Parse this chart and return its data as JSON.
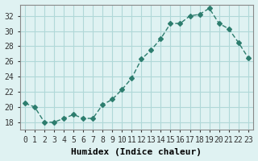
{
  "x": [
    0,
    1,
    2,
    3,
    4,
    5,
    6,
    7,
    8,
    9,
    10,
    11,
    12,
    13,
    14,
    15,
    16,
    17,
    18,
    19,
    20,
    21,
    22,
    23
  ],
  "y": [
    20.5,
    20.0,
    18.0,
    18.0,
    18.5,
    19.0,
    18.5,
    18.5,
    20.3,
    21.0,
    22.3,
    23.8,
    26.3,
    27.5,
    29.0,
    31.0,
    31.0,
    32.0,
    32.2,
    33.0,
    31.0,
    30.3,
    28.5,
    26.5
  ],
  "line_color": "#2d7d6e",
  "marker": "D",
  "marker_size": 3,
  "bg_color": "#dff2f2",
  "grid_color": "#b0d8d8",
  "xlabel": "Humidex (Indice chaleur)",
  "ylabel": "",
  "title": "",
  "xlim": [
    -0.5,
    23.5
  ],
  "ylim": [
    17,
    33.5
  ],
  "yticks": [
    18,
    20,
    22,
    24,
    26,
    28,
    30,
    32
  ],
  "xtick_labels": [
    "0",
    "1",
    "2",
    "3",
    "4",
    "5",
    "6",
    "7",
    "8",
    "9",
    "10",
    "11",
    "12",
    "13",
    "14",
    "15",
    "16",
    "17",
    "18",
    "19",
    "20",
    "21",
    "22",
    "23"
  ],
  "font_family": "monospace",
  "tick_fontsize": 7,
  "label_fontsize": 8
}
